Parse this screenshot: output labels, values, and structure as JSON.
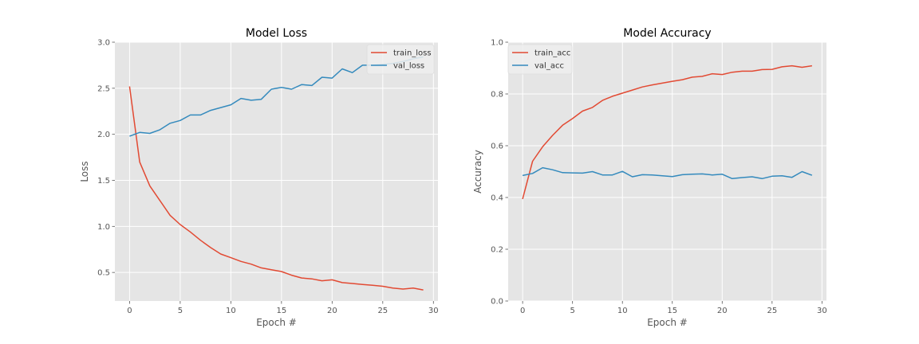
{
  "colors": {
    "background": "#ffffff",
    "axes_face": "#e5e5e5",
    "grid": "#ffffff",
    "tick_label": "#555555",
    "series_red": "#e24a33",
    "series_blue": "#348abd",
    "legend_face": "#eeeeee"
  },
  "chart_data": [
    {
      "type": "line",
      "title": "Model Loss",
      "xlabel": "Epoch #",
      "ylabel": "Loss",
      "xlim": [
        -1.45,
        30.45
      ],
      "ylim": [
        0.19,
        3.0
      ],
      "xticks": [
        0,
        5,
        10,
        15,
        20,
        25,
        30
      ],
      "xtick_labels": [
        "0",
        "5",
        "10",
        "15",
        "20",
        "25",
        "30"
      ],
      "yticks": [
        0.5,
        1.0,
        1.5,
        2.0,
        2.5,
        3.0
      ],
      "ytick_labels": [
        "0.5",
        "1.0",
        "1.5",
        "2.0",
        "2.5",
        "3.0"
      ],
      "grid": true,
      "legend_position": "upper right",
      "x": [
        0,
        1,
        2,
        3,
        4,
        5,
        6,
        7,
        8,
        9,
        10,
        11,
        12,
        13,
        14,
        15,
        16,
        17,
        18,
        19,
        20,
        21,
        22,
        23,
        24,
        25,
        26,
        27,
        28,
        29
      ],
      "series": [
        {
          "name": "train_loss",
          "color": "#e24a33",
          "values": [
            2.52,
            1.7,
            1.44,
            1.28,
            1.12,
            1.02,
            0.94,
            0.85,
            0.77,
            0.7,
            0.66,
            0.62,
            0.59,
            0.55,
            0.53,
            0.51,
            0.47,
            0.44,
            0.43,
            0.41,
            0.42,
            0.39,
            0.38,
            0.37,
            0.36,
            0.35,
            0.33,
            0.32,
            0.33,
            0.31
          ]
        },
        {
          "name": "val_loss",
          "color": "#348abd",
          "values": [
            1.98,
            2.02,
            2.01,
            2.05,
            2.12,
            2.15,
            2.21,
            2.21,
            2.26,
            2.29,
            2.32,
            2.39,
            2.37,
            2.38,
            2.49,
            2.51,
            2.49,
            2.54,
            2.53,
            2.62,
            2.61,
            2.71,
            2.67,
            2.75,
            2.75,
            2.76,
            2.77,
            2.79,
            2.82,
            2.84
          ]
        }
      ]
    },
    {
      "type": "line",
      "title": "Model Accuracy",
      "xlabel": "Epoch #",
      "ylabel": "Accuracy",
      "xlim": [
        -1.45,
        30.45
      ],
      "ylim": [
        0.0,
        1.0
      ],
      "xticks": [
        0,
        5,
        10,
        15,
        20,
        25,
        30
      ],
      "xtick_labels": [
        "0",
        "5",
        "10",
        "15",
        "20",
        "25",
        "30"
      ],
      "yticks": [
        0.0,
        0.2,
        0.4,
        0.6,
        0.8,
        1.0
      ],
      "ytick_labels": [
        "0.0",
        "0.2",
        "0.4",
        "0.6",
        "0.8",
        "1.0"
      ],
      "grid": true,
      "legend_position": "upper left",
      "x": [
        0,
        1,
        2,
        3,
        4,
        5,
        6,
        7,
        8,
        9,
        10,
        11,
        12,
        13,
        14,
        15,
        16,
        17,
        18,
        19,
        20,
        21,
        22,
        23,
        24,
        25,
        26,
        27,
        28,
        29
      ],
      "series": [
        {
          "name": "train_acc",
          "color": "#e24a33",
          "values": [
            0.394,
            0.54,
            0.596,
            0.64,
            0.679,
            0.705,
            0.734,
            0.748,
            0.775,
            0.791,
            0.803,
            0.815,
            0.827,
            0.835,
            0.842,
            0.849,
            0.855,
            0.865,
            0.868,
            0.878,
            0.875,
            0.884,
            0.888,
            0.888,
            0.894,
            0.895,
            0.905,
            0.909,
            0.903,
            0.909
          ]
        },
        {
          "name": "val_acc",
          "color": "#348abd",
          "values": [
            0.485,
            0.493,
            0.515,
            0.507,
            0.496,
            0.495,
            0.494,
            0.5,
            0.487,
            0.487,
            0.501,
            0.48,
            0.488,
            0.487,
            0.484,
            0.481,
            0.488,
            0.49,
            0.491,
            0.487,
            0.49,
            0.473,
            0.477,
            0.48,
            0.473,
            0.482,
            0.484,
            0.478,
            0.5,
            0.486
          ]
        }
      ]
    }
  ]
}
